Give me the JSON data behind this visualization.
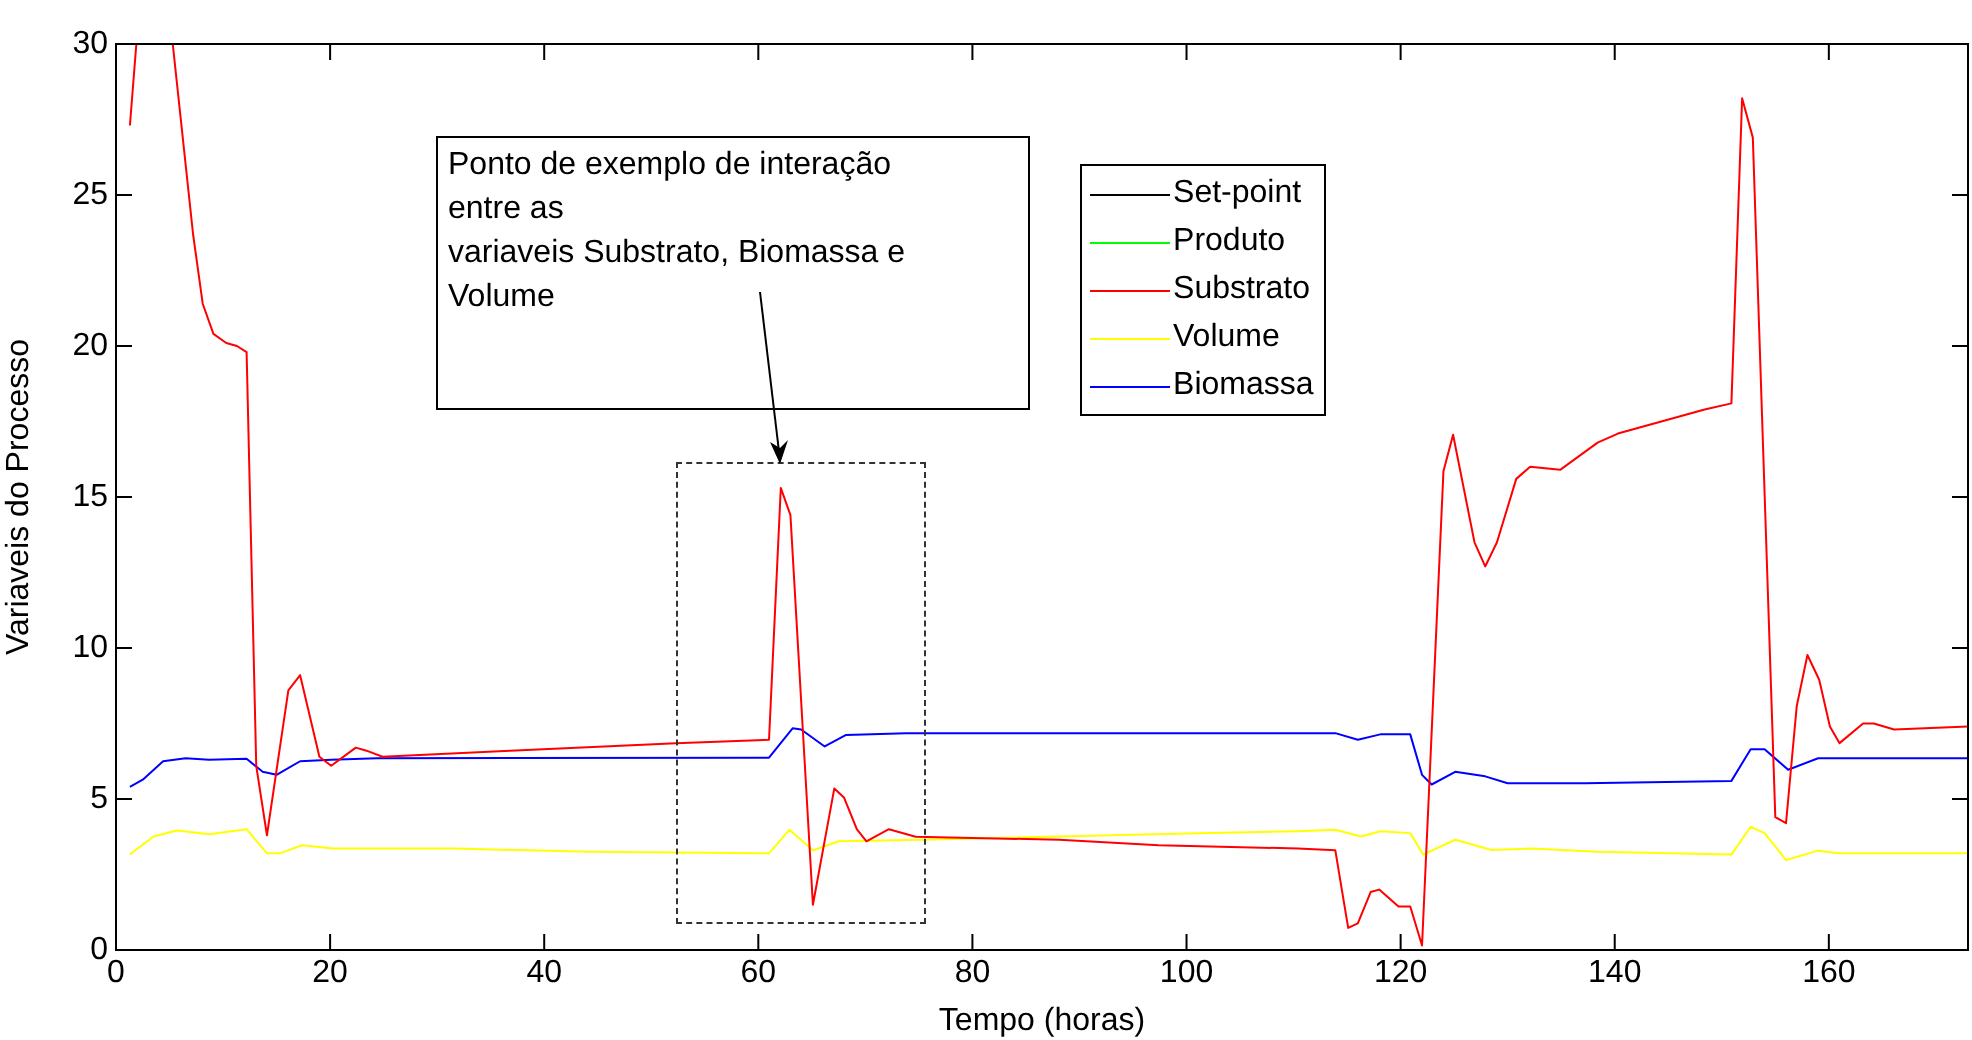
{
  "chart_data": {
    "type": "line",
    "xlabel": "Tempo (horas)",
    "ylabel": "Variaveis do Processo",
    "xlim": [
      0,
      173
    ],
    "ylim": [
      0,
      30
    ],
    "xticks": [
      0,
      20,
      40,
      60,
      80,
      100,
      120,
      140,
      160
    ],
    "yticks": [
      0,
      5,
      10,
      15,
      20,
      25,
      30
    ],
    "grid": false,
    "legend": "top",
    "marker": "none",
    "line_style": "solid",
    "annotations": [
      "Ponto de exemplo de interação\nentre as\nvariaveis Substrato, Biomassa e\nVolume"
    ],
    "series": [
      {
        "name": "Set-point",
        "color": "#000000"
      },
      {
        "name": "Produto",
        "color": "#00ff00"
      },
      {
        "name": "Substrato",
        "color": "#ff0000",
        "x": [
          1.3,
          1.9,
          5.3,
          7.2,
          8.1,
          9.1,
          10.3,
          11.3,
          12.2,
          13.1,
          14.1,
          16.1,
          17.2,
          19.0,
          20.1,
          22.4,
          23.4,
          24.9,
          36.8,
          52.3,
          61.0,
          62.1,
          63.0,
          65.1,
          67.1,
          68.0,
          69.2,
          70.1,
          72.2,
          74.7,
          88.1,
          97.4,
          110.4,
          113.9,
          115.1,
          116.0,
          117.2,
          118.0,
          119.8,
          120.9,
          122.0,
          124.0,
          124.9,
          126.9,
          127.9,
          129.0,
          130.8,
          132.1,
          134.9,
          138.4,
          140.3,
          148.4,
          150.9,
          151.9,
          152.9,
          155.0,
          156.0,
          157.0,
          158.0,
          159.1,
          160.1,
          161.0,
          163.2,
          164.2,
          166.1,
          173
        ],
        "values": [
          27.3,
          30,
          30,
          23.7,
          21.4,
          20.4,
          20.1,
          20.0,
          19.8,
          6.1,
          3.8,
          8.6,
          9.1,
          6.4,
          6.1,
          6.7,
          6.6,
          6.4,
          6.6,
          6.85,
          6.96,
          15.3,
          14.4,
          1.5,
          5.35,
          5.05,
          4.0,
          3.6,
          4.0,
          3.75,
          3.65,
          3.47,
          3.36,
          3.3,
          0.73,
          0.88,
          1.92,
          2.0,
          1.44,
          1.44,
          0.15,
          15.85,
          17.06,
          13.5,
          12.7,
          13.5,
          15.6,
          16.0,
          15.9,
          16.8,
          17.1,
          17.9,
          18.1,
          28.2,
          26.9,
          4.4,
          4.2,
          8.07,
          9.77,
          8.95,
          7.4,
          6.85,
          7.5,
          7.5,
          7.3,
          7.4
        ]
      },
      {
        "name": "Volume",
        "color": "#ffff00",
        "x": [
          1.3,
          3.5,
          5.7,
          8.7,
          12.2,
          14.1,
          15.3,
          17.4,
          20.3,
          31.7,
          44.2,
          61.0,
          62.9,
          65.1,
          67.5,
          75.3,
          101.1,
          110.4,
          113.9,
          116.3,
          118.1,
          120.9,
          122.1,
          125.1,
          128.5,
          132.2,
          138.4,
          150.9,
          152.7,
          154.0,
          156.0,
          159.0,
          160.9,
          173
        ],
        "values": [
          3.16,
          3.76,
          3.96,
          3.83,
          4.0,
          3.2,
          3.2,
          3.47,
          3.36,
          3.36,
          3.25,
          3.2,
          3.98,
          3.3,
          3.6,
          3.65,
          3.87,
          3.93,
          3.98,
          3.76,
          3.93,
          3.87,
          3.16,
          3.65,
          3.31,
          3.36,
          3.25,
          3.16,
          4.08,
          3.87,
          2.98,
          3.29,
          3.2,
          3.2
        ]
      },
      {
        "name": "Biomassa",
        "color": "#0000ff",
        "x": [
          1.3,
          2.5,
          4.4,
          6.5,
          8.7,
          12.2,
          13.7,
          15.0,
          17.2,
          20.1,
          24.4,
          61.0,
          63.2,
          64.0,
          66.2,
          68.2,
          73.8,
          113.9,
          116.0,
          118.1,
          120.9,
          122.0,
          122.9,
          125.1,
          127.9,
          130.0,
          137.2,
          150.9,
          152.7,
          154.0,
          156.2,
          159.0,
          173
        ],
        "values": [
          5.4,
          5.64,
          6.25,
          6.35,
          6.3,
          6.33,
          5.9,
          5.8,
          6.25,
          6.3,
          6.35,
          6.37,
          7.34,
          7.3,
          6.74,
          7.12,
          7.18,
          7.18,
          6.96,
          7.14,
          7.14,
          5.8,
          5.48,
          5.9,
          5.75,
          5.52,
          5.52,
          5.6,
          6.65,
          6.65,
          5.97,
          6.35,
          6.35
        ]
      }
    ]
  }
}
